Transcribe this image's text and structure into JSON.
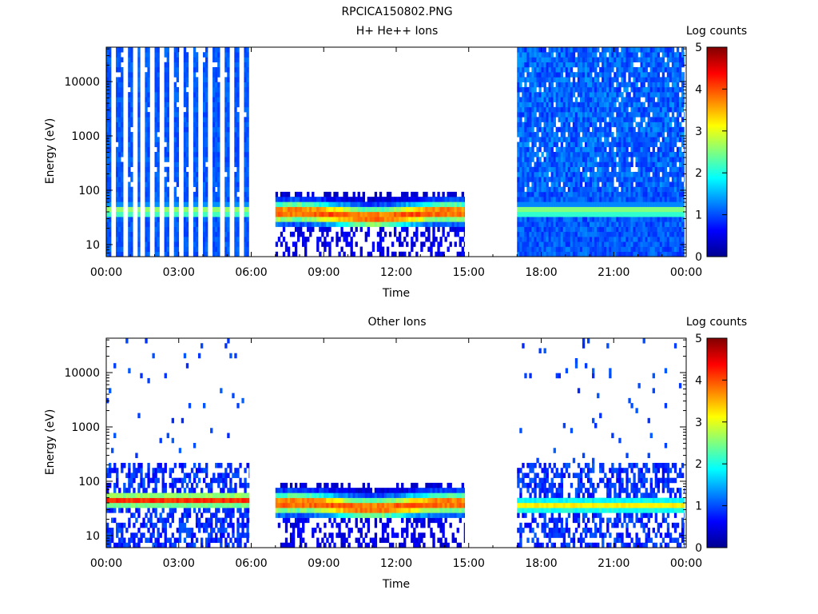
{
  "figure_title": "RPCICA150802.PNG",
  "chart_data": [
    {
      "type": "heatmap",
      "title": "H+ He++ Ions",
      "xlabel": "Time",
      "ylabel": "Energy (eV)",
      "x_range_hours": [
        0,
        24
      ],
      "x_ticks": [
        "00:00",
        "03:00",
        "06:00",
        "09:00",
        "12:00",
        "15:00",
        "18:00",
        "21:00",
        "00:00"
      ],
      "y_scale": "log",
      "y_range": [
        6,
        43000
      ],
      "y_ticks": [
        "10",
        "100",
        "1000",
        "10000"
      ],
      "colorbar": {
        "label": "Log counts",
        "range": [
          0,
          5
        ],
        "ticks": [
          "0",
          "1",
          "2",
          "3",
          "4",
          "5"
        ]
      },
      "segments": [
        {
          "start": "00:00",
          "end": "05:55",
          "pattern": "vertical stripes across all energies, peak ~35-55 eV",
          "peak_log_counts": 2.7
        },
        {
          "start": "07:00",
          "end": "14:50",
          "pattern": "band below 100 eV, peak ~35 eV",
          "peak_log_counts": 3.8
        },
        {
          "start": "17:00",
          "end": "23:55",
          "pattern": "dense speckle across all energies, band ~30-55 eV",
          "peak_log_counts": 2.6
        }
      ]
    },
    {
      "type": "heatmap",
      "title": "Other Ions",
      "xlabel": "Time",
      "ylabel": "Energy (eV)",
      "x_range_hours": [
        0,
        24
      ],
      "x_ticks": [
        "00:00",
        "03:00",
        "06:00",
        "09:00",
        "12:00",
        "15:00",
        "18:00",
        "21:00",
        "00:00"
      ],
      "y_scale": "log",
      "y_range": [
        6,
        43000
      ],
      "y_ticks": [
        "10",
        "100",
        "1000",
        "10000"
      ],
      "colorbar": {
        "label": "Log counts",
        "range": [
          0,
          5
        ],
        "ticks": [
          "0",
          "1",
          "2",
          "3",
          "4",
          "5"
        ]
      },
      "segments": [
        {
          "start": "00:00",
          "end": "05:55",
          "pattern": "sparse dots above 200 eV, strong band ~35-55 eV",
          "peak_log_counts": 4.0
        },
        {
          "start": "07:00",
          "end": "14:50",
          "pattern": "band below 100 eV, peak ~35 eV",
          "peak_log_counts": 3.8
        },
        {
          "start": "17:00",
          "end": "23:55",
          "pattern": "sparse dots above 200 eV, band ~30-50 eV",
          "peak_log_counts": 3.0
        }
      ]
    }
  ]
}
